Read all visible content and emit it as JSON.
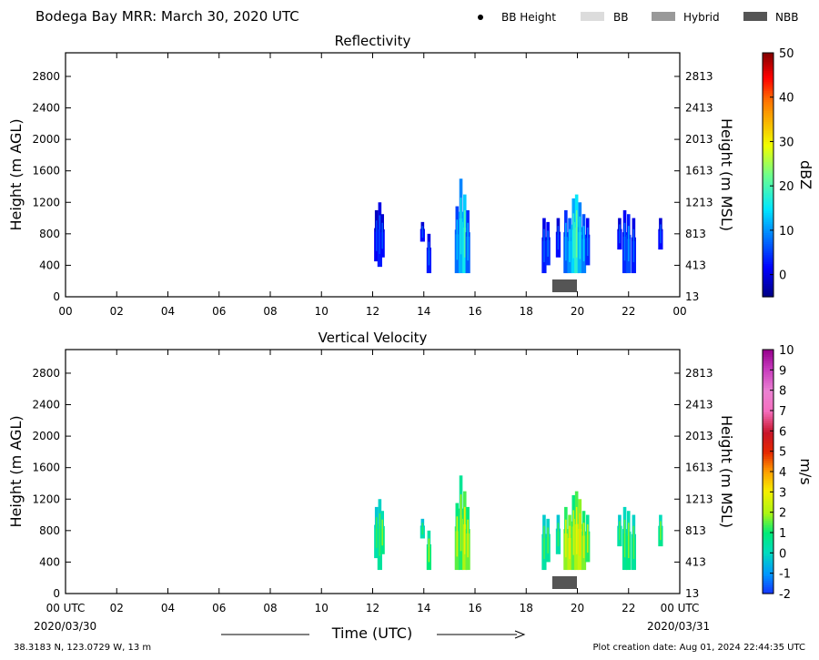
{
  "header": {
    "title": "Bodega Bay MRR:  March 30, 2020 UTC",
    "legend": [
      {
        "label": "BB Height",
        "marker": "dot",
        "color": "#000000"
      },
      {
        "label": "BB",
        "marker": "swatch",
        "color": "#dcdcdc"
      },
      {
        "label": "Hybrid",
        "marker": "swatch",
        "color": "#999999"
      },
      {
        "label": "NBB",
        "marker": "swatch",
        "color": "#555555"
      }
    ]
  },
  "footer": {
    "location": "38.3183 N, 123.0729 W, 13 m",
    "plot_creation": "Plot creation date: Aug 01, 2024 22:44:35 UTC",
    "xlabel": "Time (UTC)",
    "start_date": "2020/03/30",
    "end_date": "2020/03/31"
  },
  "chart_data": [
    {
      "type": "heatmap",
      "title": "Reflectivity",
      "ylabel": "Height (m AGL)",
      "ylabel_right": "Height (m MSL)",
      "colorbar_label": "dBZ",
      "xlim": [
        0,
        24
      ],
      "ylim": [
        0,
        3100
      ],
      "x_ticks": [
        "00",
        "02",
        "04",
        "06",
        "08",
        "10",
        "12",
        "14",
        "16",
        "18",
        "20",
        "22",
        "00"
      ],
      "y_ticks": [
        0,
        400,
        800,
        1200,
        1600,
        2000,
        2400,
        2800
      ],
      "y_ticks_right": [
        "13",
        "413",
        "813",
        "1213",
        "1613",
        "2013",
        "2413",
        "2813"
      ],
      "colorbar_range": [
        -5,
        50
      ],
      "colorbar_ticks": [
        "0",
        "10",
        "20",
        "30",
        "40",
        "50"
      ],
      "colorscale": "jet",
      "nbb_bars": [
        {
          "start": 19.0,
          "end": 20.0
        }
      ],
      "echoes": [
        {
          "x": 12.15,
          "bottom": 450,
          "top": 1100,
          "value": 1
        },
        {
          "x": 12.28,
          "bottom": 380,
          "top": 1200,
          "value": 3
        },
        {
          "x": 12.38,
          "bottom": 500,
          "top": 1050,
          "value": 2
        },
        {
          "x": 13.95,
          "bottom": 700,
          "top": 950,
          "value": 2
        },
        {
          "x": 14.2,
          "bottom": 300,
          "top": 800,
          "value": 3
        },
        {
          "x": 15.3,
          "bottom": 300,
          "top": 1150,
          "value": 8
        },
        {
          "x": 15.45,
          "bottom": 300,
          "top": 1500,
          "value": 12
        },
        {
          "x": 15.6,
          "bottom": 300,
          "top": 1300,
          "value": 16
        },
        {
          "x": 15.72,
          "bottom": 300,
          "top": 1100,
          "value": 7
        },
        {
          "x": 18.7,
          "bottom": 300,
          "top": 1000,
          "value": 3
        },
        {
          "x": 18.85,
          "bottom": 400,
          "top": 950,
          "value": 4
        },
        {
          "x": 19.25,
          "bottom": 500,
          "top": 1000,
          "value": 2
        },
        {
          "x": 19.55,
          "bottom": 300,
          "top": 1100,
          "value": 7
        },
        {
          "x": 19.7,
          "bottom": 300,
          "top": 1000,
          "value": 10
        },
        {
          "x": 19.85,
          "bottom": 300,
          "top": 1250,
          "value": 14
        },
        {
          "x": 19.97,
          "bottom": 300,
          "top": 1300,
          "value": 18
        },
        {
          "x": 20.1,
          "bottom": 300,
          "top": 1200,
          "value": 12
        },
        {
          "x": 20.25,
          "bottom": 300,
          "top": 1050,
          "value": 9
        },
        {
          "x": 20.4,
          "bottom": 400,
          "top": 1000,
          "value": 4
        },
        {
          "x": 21.65,
          "bottom": 600,
          "top": 1000,
          "value": 2
        },
        {
          "x": 21.85,
          "bottom": 300,
          "top": 1100,
          "value": 4
        },
        {
          "x": 22.0,
          "bottom": 300,
          "top": 1050,
          "value": 6
        },
        {
          "x": 22.2,
          "bottom": 300,
          "top": 1000,
          "value": 3
        },
        {
          "x": 23.25,
          "bottom": 600,
          "top": 1000,
          "value": 2
        }
      ]
    },
    {
      "type": "heatmap",
      "title": "Vertical Velocity",
      "ylabel": "Height (m AGL)",
      "ylabel_right": "Height (m MSL)",
      "colorbar_label": "m/s",
      "xlim": [
        0,
        24
      ],
      "ylim": [
        0,
        3100
      ],
      "x_ticks": [
        "00 UTC",
        "02",
        "04",
        "06",
        "08",
        "10",
        "12",
        "14",
        "16",
        "18",
        "20",
        "22",
        "00 UTC"
      ],
      "y_ticks": [
        0,
        400,
        800,
        1200,
        1600,
        2000,
        2400,
        2800
      ],
      "y_ticks_right": [
        "13",
        "413",
        "813",
        "1213",
        "1613",
        "2013",
        "2413",
        "2813"
      ],
      "colorbar_range": [
        -2,
        10
      ],
      "colorbar_ticks": [
        "-2",
        "-1",
        "0",
        "1",
        "2",
        "3",
        "4",
        "5",
        "6",
        "7",
        "8",
        "9",
        "10"
      ],
      "colorscale": "velocity",
      "nbb_bars": [
        {
          "start": 19.0,
          "end": 20.0
        }
      ],
      "echoes": [
        {
          "x": 12.15,
          "bottom": 450,
          "top": 1100,
          "value": 0.3
        },
        {
          "x": 12.28,
          "bottom": 300,
          "top": 1200,
          "value": 0.5
        },
        {
          "x": 12.38,
          "bottom": 500,
          "top": 1050,
          "value": 0.8
        },
        {
          "x": 13.95,
          "bottom": 700,
          "top": 950,
          "value": 0.2
        },
        {
          "x": 14.2,
          "bottom": 300,
          "top": 800,
          "value": 1.0
        },
        {
          "x": 15.3,
          "bottom": 300,
          "top": 1150,
          "value": 1.5
        },
        {
          "x": 15.45,
          "bottom": 300,
          "top": 1500,
          "value": 1.2
        },
        {
          "x": 15.6,
          "bottom": 300,
          "top": 1300,
          "value": 2.0
        },
        {
          "x": 15.72,
          "bottom": 300,
          "top": 1100,
          "value": 1.6
        },
        {
          "x": 18.7,
          "bottom": 300,
          "top": 1000,
          "value": 0.4
        },
        {
          "x": 18.85,
          "bottom": 400,
          "top": 950,
          "value": 0.5
        },
        {
          "x": 19.25,
          "bottom": 500,
          "top": 1000,
          "value": 0.3
        },
        {
          "x": 19.55,
          "bottom": 300,
          "top": 1100,
          "value": 1.8
        },
        {
          "x": 19.7,
          "bottom": 300,
          "top": 1000,
          "value": 2.2
        },
        {
          "x": 19.85,
          "bottom": 300,
          "top": 1250,
          "value": 1.5
        },
        {
          "x": 19.97,
          "bottom": 300,
          "top": 1300,
          "value": 2.0
        },
        {
          "x": 20.1,
          "bottom": 300,
          "top": 1200,
          "value": 2.4
        },
        {
          "x": 20.25,
          "bottom": 300,
          "top": 1050,
          "value": 1.7
        },
        {
          "x": 20.4,
          "bottom": 400,
          "top": 1000,
          "value": 1.2
        },
        {
          "x": 21.65,
          "bottom": 600,
          "top": 1000,
          "value": 0.4
        },
        {
          "x": 21.85,
          "bottom": 300,
          "top": 1100,
          "value": 0.6
        },
        {
          "x": 22.0,
          "bottom": 300,
          "top": 1050,
          "value": 0.8
        },
        {
          "x": 22.2,
          "bottom": 300,
          "top": 1000,
          "value": 0.5
        },
        {
          "x": 23.25,
          "bottom": 600,
          "top": 1000,
          "value": 0.7
        }
      ]
    }
  ]
}
